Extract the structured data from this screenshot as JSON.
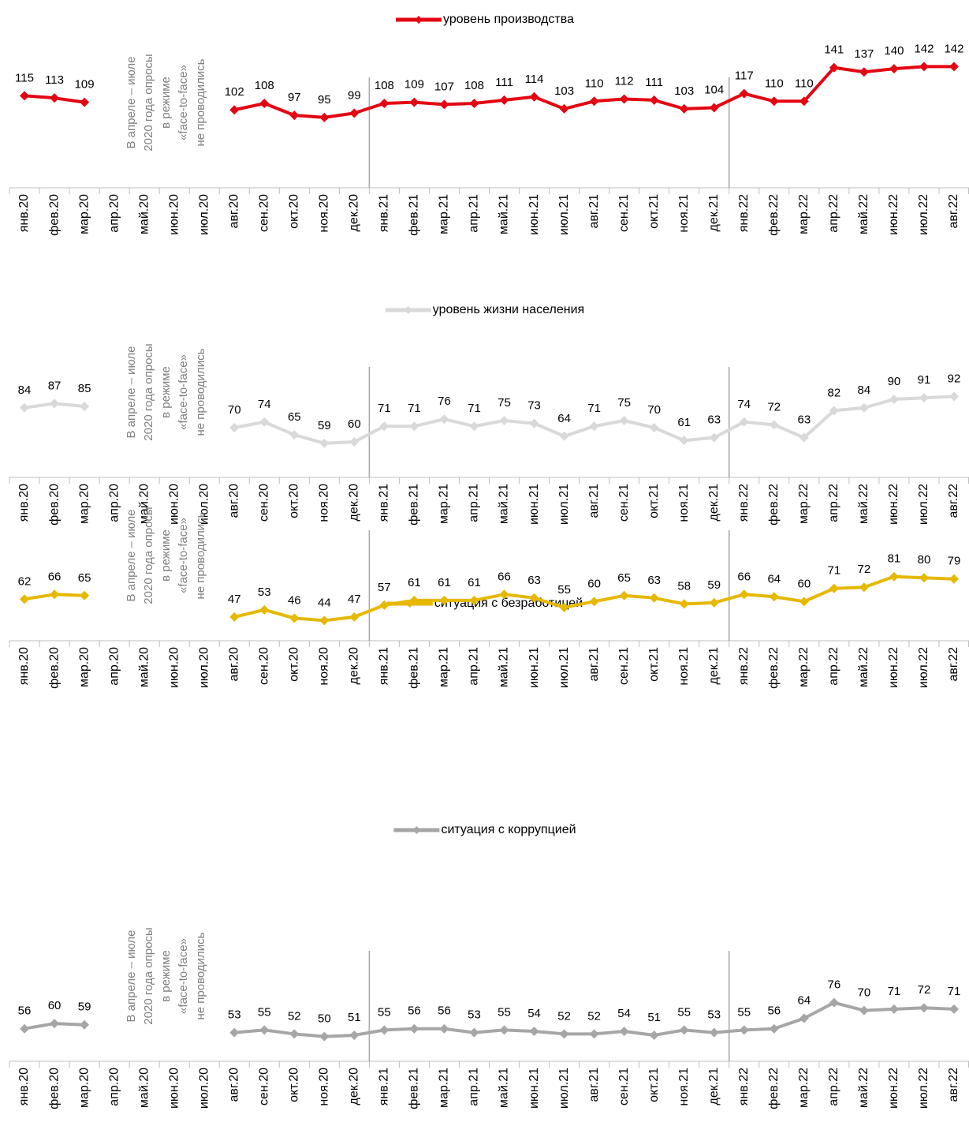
{
  "chart_data": [
    {
      "type": "line",
      "categories": [
        "янв.20",
        "фев.20",
        "мар.20",
        "апр.20",
        "май.20",
        "июн.20",
        "июл.20",
        "авг.20",
        "сен.20",
        "окт.20",
        "ноя.20",
        "дек.20",
        "янв.21",
        "фев.21",
        "мар.21",
        "апр.21",
        "май.21",
        "июн.21",
        "июл.21",
        "авг.21",
        "сен.21",
        "окт.21",
        "ноя.21",
        "дек.21",
        "янв.22",
        "фев.22",
        "мар.22",
        "апр.22",
        "май.22",
        "июн.22",
        "июл.22",
        "авг.22"
      ],
      "series": [
        {
          "name": "уровень производства",
          "color": "#e30613",
          "values": [
            115,
            113,
            109,
            null,
            null,
            null,
            null,
            102,
            108,
            97,
            95,
            99,
            108,
            109,
            107,
            108,
            111,
            114,
            103,
            110,
            112,
            111,
            103,
            104,
            117,
            110,
            110,
            141,
            137,
            140,
            142,
            142
          ]
        }
      ],
      "ylim": [
        30,
        170
      ],
      "annotation": [
        "В апреле – июле",
        "2020 года опросы",
        "в режиме",
        "«face-to-face»",
        "не проводились"
      ]
    },
    {
      "type": "line",
      "categories": [
        "янв.20",
        "фев.20",
        "мар.20",
        "апр.20",
        "май.20",
        "июн.20",
        "июл.20",
        "авг.20",
        "сен.20",
        "окт.20",
        "ноя.20",
        "дек.20",
        "янв.21",
        "фев.21",
        "мар.21",
        "апр.21",
        "май.21",
        "июн.21",
        "июл.21",
        "авг.21",
        "сен.21",
        "окт.21",
        "ноя.21",
        "дек.21",
        "янв.22",
        "фев.22",
        "мар.22",
        "апр.22",
        "май.22",
        "июн.22",
        "июл.22",
        "авг.22"
      ],
      "series": [
        {
          "name": "уровень жизни населения",
          "color": "#d9d9d9",
          "values": [
            84,
            87,
            85,
            null,
            null,
            null,
            null,
            70,
            74,
            65,
            59,
            60,
            71,
            71,
            76,
            71,
            75,
            73,
            64,
            71,
            75,
            70,
            61,
            63,
            74,
            72,
            63,
            82,
            84,
            90,
            91,
            92
          ]
        }
      ],
      "ylim": [
        35,
        130
      ],
      "annotation": [
        "В апреле – июле",
        "2020 года опросы",
        "в режиме",
        "«face-to-face»",
        "не проводились"
      ]
    },
    {
      "type": "line",
      "categories": [
        "янв.20",
        "фев.20",
        "мар.20",
        "апр.20",
        "май.20",
        "июн.20",
        "июл.20",
        "авг.20",
        "сен.20",
        "окт.20",
        "ноя.20",
        "дек.20",
        "янв.21",
        "фев.21",
        "мар.21",
        "апр.21",
        "май.21",
        "июн.21",
        "июл.21",
        "авг.21",
        "сен.21",
        "окт.21",
        "ноя.21",
        "дек.21",
        "янв.22",
        "фев.22",
        "мар.22",
        "апр.22",
        "май.22",
        "июн.22",
        "июл.22",
        "авг.22"
      ],
      "series": [
        {
          "name": "ситуация с безработицей",
          "color": "#e6b800",
          "values": [
            62,
            66,
            65,
            null,
            null,
            null,
            null,
            47,
            53,
            46,
            44,
            47,
            57,
            61,
            61,
            61,
            66,
            63,
            55,
            60,
            65,
            63,
            58,
            59,
            66,
            64,
            60,
            71,
            72,
            81,
            80,
            79
          ]
        }
      ],
      "ylim": [
        27,
        120
      ],
      "annotation": [
        "В апреле – июле",
        "2020 года опросы",
        "в режиме",
        "«face-to-face»",
        "не проводились"
      ]
    },
    {
      "type": "line",
      "categories": [
        "янв.20",
        "фев.20",
        "мар.20",
        "апр.20",
        "май.20",
        "июн.20",
        "июл.20",
        "авг.20",
        "сен.20",
        "окт.20",
        "ноя.20",
        "дек.20",
        "янв.21",
        "фев.21",
        "мар.21",
        "апр.21",
        "май.21",
        "июн.21",
        "июл.21",
        "авг.21",
        "сен.21",
        "окт.21",
        "ноя.21",
        "дек.21",
        "янв.22",
        "фев.22",
        "мар.22",
        "апр.22",
        "май.22",
        "июн.22",
        "июл.22",
        "авг.22"
      ],
      "series": [
        {
          "name": "ситуация с коррупцией",
          "color": "#a6a6a6",
          "values": [
            56,
            60,
            59,
            null,
            null,
            null,
            null,
            53,
            55,
            52,
            50,
            51,
            55,
            56,
            56,
            53,
            55,
            54,
            52,
            52,
            54,
            51,
            55,
            53,
            55,
            56,
            64,
            76,
            70,
            71,
            72,
            71
          ]
        }
      ],
      "ylim": [
        31,
        120
      ],
      "annotation": [
        "В апреле – июле",
        "2020 года опросы",
        "в режиме",
        "«face-to-face»",
        "не проводились"
      ]
    }
  ]
}
